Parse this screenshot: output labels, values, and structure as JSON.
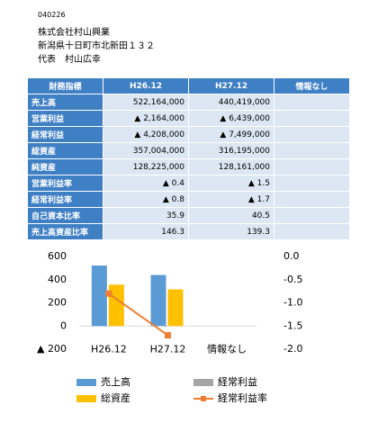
{
  "header": {
    "code": "040226",
    "company": "株式会社村山興業",
    "address": "新潟県十日町市北新田１３２",
    "representative": "代表　村山広幸"
  },
  "table": {
    "header": [
      "財務指標",
      "H26.12",
      "H27.12",
      "情報なし"
    ],
    "rows": [
      [
        "売上高",
        "522,164,000",
        "440,419,000"
      ],
      [
        "営業利益",
        "▲ 2,164,000",
        "▲ 6,439,000"
      ],
      [
        "経常利益",
        "▲ 4,208,000",
        "▲ 7,499,000"
      ],
      [
        "総資産",
        "357,004,000",
        "316,195,000"
      ],
      [
        "純資産",
        "128,225,000",
        "128,161,000"
      ],
      [
        "営業利益率",
        "▲ 0.4",
        "▲ 1.5"
      ],
      [
        "経常利益率",
        "▲ 0.8",
        "▲ 1.7"
      ],
      [
        "自己資本比率",
        "35.9",
        "40.5"
      ],
      [
        "売上高資産比率",
        "146.3",
        "139.3"
      ]
    ]
  },
  "chart_data": {
    "type": "bar",
    "categories": [
      "H26.12",
      "H27.12",
      "情報なし"
    ],
    "series": [
      {
        "name": "売上高",
        "color": "#5b9bd5",
        "values": [
          522.164,
          440.419,
          null
        ]
      },
      {
        "name": "経常利益",
        "color": "#a5a5a5",
        "values": [
          -4.208,
          -7.499,
          null
        ]
      },
      {
        "name": "総資産",
        "color": "#ffc000",
        "values": [
          357.004,
          316.195,
          null
        ]
      },
      {
        "name": "経常利益率",
        "color": "#ed7d31",
        "type": "line",
        "axis": "y2",
        "values": [
          -0.8,
          -1.7,
          null
        ]
      }
    ],
    "ylim": [
      -200,
      600
    ],
    "yticks": [
      {
        "value": -200,
        "label": "▲ 200"
      },
      0,
      200,
      400,
      600
    ],
    "y2lim": [
      -2,
      0
    ],
    "y2ticks": [
      {
        "value": -2,
        "label": "-2.0"
      },
      -1.5,
      {
        "value": -1,
        "label": "-1.0"
      },
      -0.5,
      {
        "value": 0,
        "label": "0.0"
      }
    ]
  }
}
